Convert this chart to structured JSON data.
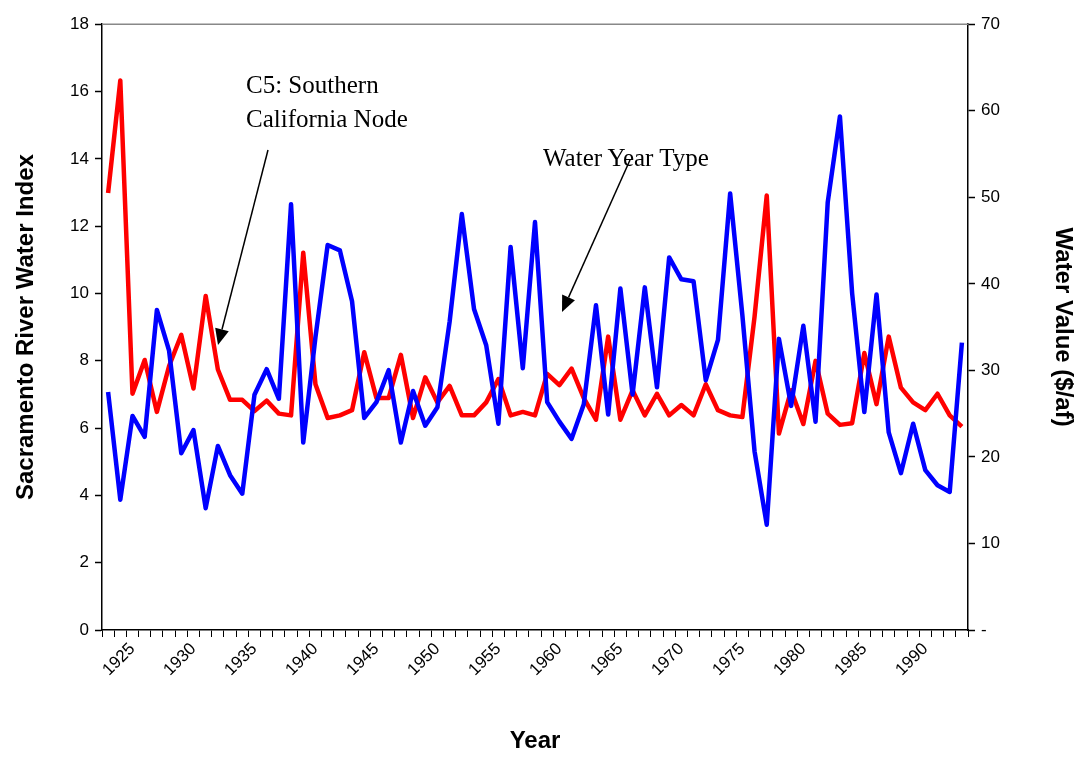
{
  "chart_data": {
    "type": "line",
    "xlabel": "Year",
    "ylabel": "Sacramento River Water Index",
    "y2label": "Water Value ($/af)",
    "categories": [
      null,
      null,
      "1925",
      null,
      null,
      null,
      null,
      "1930",
      null,
      null,
      null,
      null,
      "1935",
      null,
      null,
      null,
      null,
      "1940",
      null,
      null,
      null,
      null,
      "1945",
      null,
      null,
      null,
      null,
      "1950",
      null,
      null,
      null,
      null,
      "1955",
      null,
      null,
      null,
      null,
      "1960",
      null,
      null,
      null,
      null,
      "1965",
      null,
      null,
      null,
      null,
      "1970",
      null,
      null,
      null,
      null,
      "1975",
      null,
      null,
      null,
      null,
      "1980",
      null,
      null,
      null,
      null,
      "1985",
      null,
      null,
      null,
      null,
      "1990",
      null,
      null,
      null
    ],
    "series": [
      {
        "color": "#0000ff",
        "values": [
          7.07,
          3.87,
          6.36,
          5.74,
          9.51,
          8.3,
          5.25,
          5.94,
          3.62,
          5.47,
          4.6,
          4.05,
          6.99,
          7.75,
          6.87,
          12.65,
          5.57,
          8.7,
          11.44,
          11.28,
          9.77,
          6.3,
          6.77,
          7.72,
          5.57,
          7.1,
          6.07,
          6.62,
          9.16,
          12.36,
          9.54,
          8.46,
          6.13,
          11.38,
          7.78,
          12.12,
          6.77,
          6.19,
          5.68,
          6.71,
          9.65,
          6.4,
          10.15,
          7.0,
          10.18,
          7.21,
          11.07,
          10.42,
          10.36,
          7.42,
          8.62,
          12.97,
          9.36,
          5.31,
          3.13,
          8.65,
          6.66,
          9.04,
          6.19,
          12.71,
          15.26,
          10.01,
          6.48,
          9.97,
          5.87,
          4.66,
          6.13,
          4.75,
          4.3,
          4.1,
          8.54
        ]
      },
      {
        "color": "#ff0000",
        "axis": "y2",
        "values": [
          50.5,
          63.5,
          27.3,
          31.2,
          25.2,
          30.5,
          34.1,
          27.9,
          38.6,
          30.1,
          26.6,
          26.6,
          25.3,
          26.5,
          25.0,
          24.8,
          43.6,
          28.4,
          24.5,
          24.8,
          25.4,
          32.1,
          26.8,
          26.8,
          31.8,
          24.5,
          29.2,
          26.3,
          28.2,
          24.8,
          24.8,
          26.3,
          29.0,
          24.8,
          25.2,
          24.8,
          29.6,
          28.3,
          30.2,
          26.8,
          24.3,
          33.9,
          24.3,
          27.7,
          24.8,
          27.3,
          24.8,
          26.0,
          24.8,
          28.4,
          25.4,
          24.8,
          24.6,
          36.2,
          50.2,
          22.7,
          27.7,
          23.8,
          31.1,
          25.0,
          23.7,
          23.9,
          32.0,
          26.1,
          33.9,
          28.0,
          26.3,
          25.4,
          27.3,
          24.8,
          23.5
        ]
      }
    ],
    "ylim": [
      0,
      18
    ],
    "yticks": [
      0,
      2,
      4,
      6,
      8,
      10,
      12,
      14,
      16,
      18
    ],
    "y2lim": [
      0,
      70
    ],
    "y2ticks": [
      {
        "value": 0,
        "label": "-"
      },
      10,
      20,
      30,
      40,
      50,
      60,
      70
    ],
    "marker": "none",
    "legend": false,
    "annotations": [
      "C5: Southern California Node",
      "Water Year Type"
    ]
  }
}
